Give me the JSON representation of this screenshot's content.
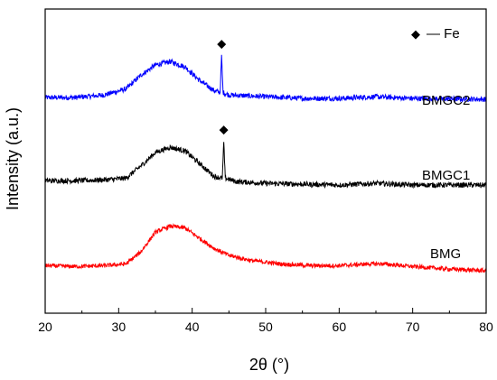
{
  "chart_data": {
    "type": "line",
    "xlabel": "2θ (°)",
    "ylabel": "Intensity (a.u.)",
    "xlim": [
      20,
      80
    ],
    "xticks": [
      20,
      30,
      40,
      50,
      60,
      70,
      80
    ],
    "yticks_shown": false,
    "grid": false,
    "legend": {
      "marker": "◆",
      "text": "— Fe",
      "placement": "top-right"
    },
    "series": [
      {
        "name": "BMGC2",
        "color": "#0000ff",
        "offset": 2.0,
        "noise": 0.03,
        "points": [
          [
            20,
            0.02
          ],
          [
            24,
            0.02
          ],
          [
            28,
            0.05
          ],
          [
            31,
            0.12
          ],
          [
            33,
            0.28
          ],
          [
            35,
            0.4
          ],
          [
            37,
            0.44
          ],
          [
            39,
            0.38
          ],
          [
            41,
            0.22
          ],
          [
            43,
            0.1
          ],
          [
            43.8,
            0.08
          ],
          [
            44.0,
            0.5
          ],
          [
            44.2,
            0.08
          ],
          [
            45,
            0.05
          ],
          [
            50,
            0.03
          ],
          [
            55,
            0.01
          ],
          [
            60,
            0.01
          ],
          [
            65,
            0.03
          ],
          [
            70,
            0.01
          ],
          [
            80,
            0.0
          ]
        ]
      },
      {
        "name": "BMGC1",
        "color": "#000000",
        "offset": 1.0,
        "noise": 0.03,
        "points": [
          [
            20,
            0.05
          ],
          [
            24,
            0.05
          ],
          [
            28,
            0.06
          ],
          [
            31,
            0.08
          ],
          [
            33,
            0.22
          ],
          [
            35,
            0.38
          ],
          [
            37,
            0.44
          ],
          [
            39,
            0.4
          ],
          [
            41,
            0.25
          ],
          [
            43,
            0.1
          ],
          [
            44.1,
            0.08
          ],
          [
            44.3,
            0.5
          ],
          [
            44.5,
            0.08
          ],
          [
            46,
            0.04
          ],
          [
            50,
            0.02
          ],
          [
            55,
            0.01
          ],
          [
            60,
            0.0
          ],
          [
            65,
            0.02
          ],
          [
            70,
            0.0
          ],
          [
            80,
            0.0
          ]
        ]
      },
      {
        "name": "BMG",
        "color": "#ff0000",
        "offset": 0.0,
        "noise": 0.025,
        "points": [
          [
            20,
            0.06
          ],
          [
            24,
            0.05
          ],
          [
            28,
            0.06
          ],
          [
            31,
            0.08
          ],
          [
            33,
            0.22
          ],
          [
            35,
            0.45
          ],
          [
            37,
            0.52
          ],
          [
            39,
            0.5
          ],
          [
            41,
            0.38
          ],
          [
            43,
            0.26
          ],
          [
            45,
            0.18
          ],
          [
            48,
            0.12
          ],
          [
            52,
            0.08
          ],
          [
            56,
            0.06
          ],
          [
            60,
            0.06
          ],
          [
            64,
            0.08
          ],
          [
            66,
            0.08
          ],
          [
            70,
            0.05
          ],
          [
            75,
            0.02
          ],
          [
            80,
            0.0
          ]
        ]
      }
    ],
    "peak_markers": [
      {
        "series": "BMGC2",
        "x": 44.0,
        "symbol": "◆"
      },
      {
        "series": "BMGC1",
        "x": 44.3,
        "symbol": "◆"
      }
    ]
  }
}
